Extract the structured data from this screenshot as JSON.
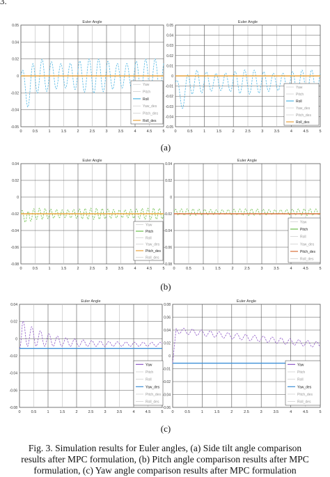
{
  "corner_text": "3.",
  "panel_labels": [
    "(a)",
    "(b)",
    "(c)"
  ],
  "caption": {
    "line1": "Fig. 3. Simulation results for Euler angles, (a) Side tilt angle comparison",
    "line2": "results after MPC formulation, (b) Pitch angle comparison results after MPC",
    "line3": "formulation, (c) Yaw angle comparison results after MPC formulation"
  },
  "chart_data": [
    {
      "id": "a-left",
      "type": "line",
      "title": "Euler Angle",
      "xlim": [
        0,
        5
      ],
      "ylim": [
        -0.05,
        0.05
      ],
      "xticks": [
        "0",
        "0.5",
        "1",
        "1.5",
        "2",
        "2.5",
        "3",
        "3.5",
        "4",
        "4.5",
        "5"
      ],
      "yticks": [
        "-0.05",
        "-0.04",
        "-0.02",
        "0",
        "0.02",
        "0.04",
        "0.05"
      ],
      "legend": [
        "Yaw",
        "Pitch",
        "Roll",
        "Yaw_des",
        "Pitch_des",
        "Roll_des"
      ],
      "series": [
        {
          "name": "Roll",
          "color": "#4fb6e3",
          "dashed": true,
          "kind": "osc",
          "base": 0.0,
          "amp": 0.017,
          "period": 0.33,
          "transient": -0.025,
          "decay": 0.45
        },
        {
          "name": "Roll_des",
          "color": "#e8a23a",
          "dashed": false,
          "kind": "const",
          "value": 0.0
        }
      ]
    },
    {
      "id": "a-right",
      "type": "line",
      "title": "Euler Angle",
      "xlim": [
        0,
        5
      ],
      "ylim": [
        -0.05,
        0.05
      ],
      "xticks": [
        "0",
        "0.5",
        "1",
        "1.5",
        "2",
        "2.5",
        "3",
        "3.5",
        "4",
        "4.5",
        "5"
      ],
      "yticks": [
        "-0.05",
        "-0.04",
        "-0.03",
        "-0.02",
        "-0.01",
        "0",
        "0.01",
        "0.02",
        "0.03",
        "0.04",
        "0.05"
      ],
      "legend": [
        "Yaw",
        "Pitch",
        "Roll",
        "Yaw_des",
        "Pitch_des",
        "Roll_des"
      ],
      "series": [
        {
          "name": "Roll",
          "color": "#4fb6e3",
          "dashed": true,
          "kind": "osc",
          "base": -0.006,
          "amp": 0.012,
          "period": 0.33,
          "transient": -0.025,
          "decay": 0.45
        },
        {
          "name": "Roll_des",
          "color": "#e8a23a",
          "dashed": false,
          "kind": "const",
          "value": 0.0
        }
      ]
    },
    {
      "id": "b-left",
      "type": "line",
      "title": "Euler Angle",
      "xlim": [
        0,
        5
      ],
      "ylim": [
        -0.08,
        0.08
      ],
      "xticks": [
        "0",
        "0.5",
        "1",
        "1.5",
        "2",
        "2.5",
        "3",
        "3.5",
        "4",
        "4.5",
        "5"
      ],
      "yticks": [
        "-0.08",
        "-0.06",
        "-0.04",
        "-0.02",
        "0",
        "0.02",
        "0.04"
      ],
      "legend": [
        "Yaw",
        "Pitch",
        "Roll",
        "Yaw_des",
        "Pitch_des",
        "Roll_des"
      ],
      "series": [
        {
          "name": "Pitch",
          "color": "#6cbf4a",
          "dashed": true,
          "kind": "osc",
          "base": 0.0,
          "amp": 0.009,
          "period": 0.2,
          "transient": -0.01,
          "decay": 0.35
        },
        {
          "name": "Pitch_des",
          "color": "#e8a23a",
          "dashed": false,
          "kind": "const",
          "value": 0.0
        }
      ]
    },
    {
      "id": "b-right",
      "type": "line",
      "title": "Euler Angle",
      "xlim": [
        0,
        5
      ],
      "ylim": [
        -0.09,
        0.09
      ],
      "xticks": [
        "0",
        "0.5",
        "1",
        "1.5",
        "2",
        "2.5",
        "3",
        "3.5",
        "4",
        "4.5",
        "5"
      ],
      "yticks": [
        "-0.08",
        "-0.06",
        "-0.04",
        "-0.02",
        "0",
        "0.02",
        "0.04"
      ],
      "legend": [
        "Yaw",
        "Pitch",
        "Roll",
        "Yaw_des",
        "Pitch_des",
        "Roll_des"
      ],
      "series": [
        {
          "name": "Pitch",
          "color": "#6cbf4a",
          "dashed": true,
          "kind": "osc",
          "base": 0.003,
          "amp": 0.006,
          "period": 0.2,
          "transient": 0.0,
          "decay": 0.35
        },
        {
          "name": "Pitch_des",
          "color": "#d9703a",
          "dashed": false,
          "kind": "const",
          "value": 0.0
        }
      ]
    },
    {
      "id": "c-left",
      "type": "line",
      "title": "Euler Angle",
      "xlim": [
        0,
        5
      ],
      "ylim": [
        -0.08,
        0.06
      ],
      "xticks": [
        "0",
        "0.5",
        "1",
        "1.5",
        "2",
        "2.5",
        "3",
        "3.5",
        "4",
        "4.5",
        "5"
      ],
      "yticks": [
        "-0.08",
        "-0.06",
        "-0.04",
        "-0.02",
        "0",
        "0.02",
        "0.04"
      ],
      "legend": [
        "Yaw",
        "Pitch",
        "Roll",
        "Yaw_des",
        "Pitch_des",
        "Roll_des"
      ],
      "series": [
        {
          "name": "Yaw",
          "color": "#8e57c7",
          "dashed": true,
          "kind": "decayosc",
          "base": 0.003,
          "amp": 0.035,
          "period": 0.3,
          "decay": 1.0,
          "rise": 0.1,
          "floor": 0.005
        },
        {
          "name": "Yaw_des",
          "color": "#3c8fd8",
          "dashed": false,
          "kind": "const",
          "value": 0.0
        }
      ]
    },
    {
      "id": "c-right",
      "type": "line",
      "title": "Euler Angle",
      "xlim": [
        0,
        5
      ],
      "ylim": [
        -0.06,
        0.08
      ],
      "xticks": [
        "0",
        "0.5",
        "1",
        "1.5",
        "2",
        "2.5",
        "3",
        "3.5",
        "4",
        "4.5",
        "5"
      ],
      "yticks": [
        "-0.06",
        "-0.04",
        "-0.02",
        "-0.01",
        "0",
        "0.02",
        "0.04",
        "0.06",
        "0.08"
      ],
      "legend": [
        "Yaw",
        "Pitch",
        "Roll",
        "Yaw_des",
        "Pitch_des",
        "Roll_des"
      ],
      "series": [
        {
          "name": "Yaw",
          "color": "#8e57c7",
          "dashed": true,
          "kind": "drift",
          "start": 0.045,
          "end": 0.025,
          "amp": 0.004,
          "period": 0.3,
          "rise": 0.12
        },
        {
          "name": "Yaw_des",
          "color": "#3c8fd8",
          "dashed": false,
          "kind": "const",
          "value": 0.0
        }
      ]
    }
  ]
}
